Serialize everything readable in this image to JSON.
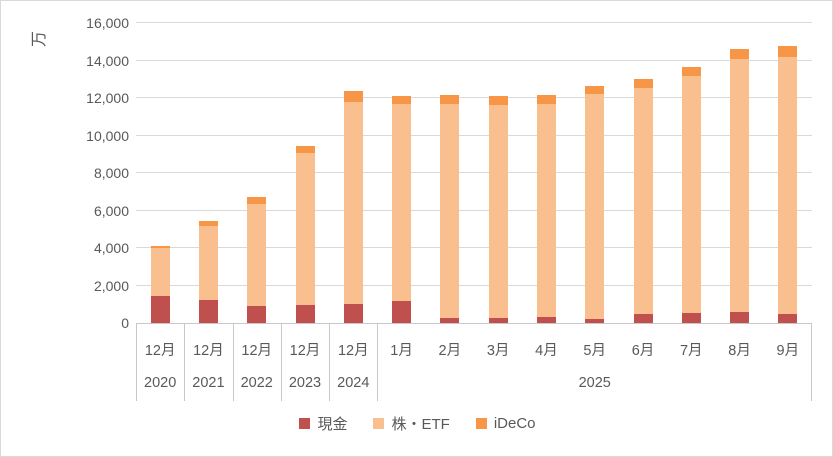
{
  "chart": {
    "axis_text_color": "#595959",
    "gridline_color": "#d9d9d9",
    "border_color": "#d9d9d9",
    "background": "#ffffff"
  },
  "chart_data": {
    "type": "bar",
    "stacked": true,
    "title": "",
    "ylabel": "万",
    "xlabel": "",
    "grid": true,
    "legend_position": "bottom",
    "y_axis": {
      "min": 0,
      "max": 16000,
      "step": 2000,
      "tick_labels": [
        "0",
        "2,000",
        "4,000",
        "6,000",
        "8,000",
        "10,000",
        "12,000",
        "14,000",
        "16,000"
      ]
    },
    "categories": [
      {
        "month": "12月",
        "year": "2020"
      },
      {
        "month": "12月",
        "year": "2021"
      },
      {
        "month": "12月",
        "year": "2022"
      },
      {
        "month": "12月",
        "year": "2023"
      },
      {
        "month": "12月",
        "year": "2024"
      },
      {
        "month": "1月",
        "year": "2025"
      },
      {
        "month": "2月",
        "year": "2025"
      },
      {
        "month": "3月",
        "year": "2025"
      },
      {
        "month": "4月",
        "year": "2025"
      },
      {
        "month": "5月",
        "year": "2025"
      },
      {
        "month": "6月",
        "year": "2025"
      },
      {
        "month": "7月",
        "year": "2025"
      },
      {
        "month": "8月",
        "year": "2025"
      },
      {
        "month": "9月",
        "year": "2025"
      }
    ],
    "year_groups": [
      {
        "label": "2020",
        "span": 1
      },
      {
        "label": "2021",
        "span": 1
      },
      {
        "label": "2022",
        "span": 1
      },
      {
        "label": "2023",
        "span": 1
      },
      {
        "label": "2024",
        "span": 1
      },
      {
        "label": "2025",
        "span": 9
      }
    ],
    "series": [
      {
        "name": "現金",
        "color": "#C0504D",
        "values": [
          1450,
          1250,
          900,
          950,
          1000,
          1200,
          250,
          250,
          300,
          200,
          500,
          550,
          600,
          500
        ]
      },
      {
        "name": "株・ETF",
        "color": "#FABF8F",
        "values": [
          2550,
          3900,
          5450,
          8100,
          10800,
          10500,
          11450,
          11400,
          11400,
          12000,
          12050,
          12600,
          13500,
          13700
        ]
      },
      {
        "name": "iDeCo",
        "color": "#F79646",
        "values": [
          100,
          300,
          350,
          400,
          550,
          400,
          450,
          450,
          450,
          450,
          450,
          500,
          500,
          550
        ]
      }
    ]
  }
}
